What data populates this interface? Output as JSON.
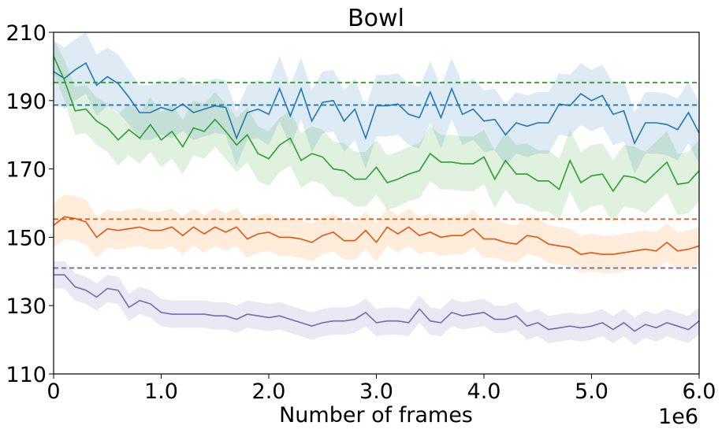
{
  "chart_data": {
    "type": "line",
    "title": "Bowl",
    "xlabel": "Number of frames",
    "ylabel": "",
    "x_offset_label": "1e6",
    "xlim": [
      0,
      6.0
    ],
    "ylim": [
      110,
      210
    ],
    "x_ticks": [
      0,
      1.0,
      2.0,
      3.0,
      4.0,
      5.0,
      6.0
    ],
    "x_tick_labels": [
      "0",
      "1.0",
      "2.0",
      "3.0",
      "4.0",
      "5.0",
      "6.0"
    ],
    "y_ticks": [
      110,
      130,
      150,
      170,
      190,
      210
    ],
    "y_tick_labels": [
      "110",
      "130",
      "150",
      "170",
      "190",
      "210"
    ],
    "grid": false,
    "x_step": 0.1,
    "series": [
      {
        "color": "#1f77b4",
        "band_color": "#1f77b4",
        "values": [
          198.5,
          196.5,
          199,
          201,
          194.5,
          197,
          195,
          191,
          186.5,
          186.5,
          188,
          187,
          189,
          186.5,
          187.5,
          188.5,
          188,
          179,
          186.5,
          187.5,
          186,
          193.5,
          185.5,
          193.5,
          184,
          189.5,
          190,
          184,
          187.5,
          179,
          188.5,
          188.5,
          189,
          186,
          185,
          192.5,
          185,
          193.5,
          186,
          187.5,
          184,
          184.5,
          180,
          183.5,
          182.5,
          183.5,
          183.5,
          189,
          188.5,
          192,
          190,
          191.5,
          186,
          187,
          177.5,
          183.5,
          183.5,
          183,
          181.5,
          186.5,
          180.5
        ],
        "spread": [
          9,
          9,
          9,
          9,
          9,
          8.5,
          8.5,
          8,
          8,
          8,
          8,
          8,
          8,
          8,
          8,
          8,
          8,
          8,
          8,
          8.5,
          9,
          9.5,
          9,
          9,
          9,
          9,
          9,
          9,
          9,
          9,
          9,
          9,
          9,
          9,
          9,
          9,
          9,
          9,
          9,
          9,
          9,
          9,
          9,
          9,
          9,
          9,
          9,
          9,
          9,
          9,
          9,
          9,
          9,
          9,
          9,
          9,
          9,
          9,
          9,
          9,
          9
        ],
        "baseline": 188.7
      },
      {
        "color": "#2ca02c",
        "band_color": "#2ca02c",
        "values": [
          203,
          196,
          187,
          187.5,
          184,
          182,
          178.5,
          181.5,
          179,
          183,
          178.5,
          181,
          176.5,
          182,
          181,
          184.5,
          181,
          177,
          180,
          174.5,
          173,
          177,
          179,
          172.5,
          174.5,
          173.5,
          170,
          169.5,
          167,
          167,
          170.5,
          166,
          167,
          168.5,
          169.5,
          174.5,
          172,
          172,
          171.5,
          171.5,
          173.5,
          167,
          172.5,
          168.5,
          168.5,
          166.5,
          166.5,
          164,
          172.5,
          166,
          168,
          168.5,
          163.5,
          168,
          167.5,
          166,
          169,
          172,
          165.5,
          166,
          169.5
        ],
        "spread": [
          5,
          6,
          7,
          7,
          7,
          7,
          7.5,
          7.5,
          7.5,
          8,
          8,
          8,
          8,
          8,
          8,
          8,
          8,
          8,
          8,
          8,
          8,
          8,
          8,
          8,
          8,
          8,
          8,
          8,
          8,
          8,
          8,
          8,
          8,
          8,
          8,
          8,
          8,
          8,
          8,
          8,
          8,
          8.5,
          8.5,
          8.5,
          9,
          9,
          9,
          9,
          9,
          9,
          9,
          9,
          9,
          9,
          9,
          9,
          9,
          9,
          9,
          9,
          9
        ],
        "baseline": 195.3
      },
      {
        "color": "#e6550d",
        "band_color": "#ff7f0e",
        "values": [
          153.5,
          156,
          155.5,
          154.5,
          150,
          152.5,
          152,
          152.5,
          153,
          152,
          152,
          153,
          150.5,
          153,
          151,
          153,
          151.5,
          153,
          149.5,
          151,
          151.5,
          150,
          150,
          149.5,
          148.5,
          150.5,
          151.5,
          149,
          149,
          152,
          148.5,
          153,
          151,
          153,
          150.5,
          151.5,
          150,
          150.5,
          150.5,
          152.5,
          149.5,
          149.5,
          148.5,
          148,
          150.5,
          150,
          148,
          147.5,
          147,
          145,
          145.5,
          145,
          145,
          145.5,
          146,
          146.5,
          146,
          148.5,
          146,
          146.5,
          147.5
        ],
        "spread": [
          6.5,
          6.5,
          6.5,
          6.5,
          6,
          5.5,
          5.5,
          5.5,
          5.5,
          5.5,
          5.5,
          5.5,
          5.5,
          5.5,
          5.5,
          5.5,
          5.5,
          5.5,
          5.5,
          5.5,
          5.5,
          5.5,
          5.5,
          5.5,
          5.5,
          5.5,
          5.5,
          5.5,
          5.5,
          5.5,
          5.5,
          5.5,
          5.5,
          5.5,
          5.5,
          5.5,
          5.5,
          5.5,
          5.5,
          5.5,
          5.5,
          5.5,
          5.5,
          5.5,
          5.5,
          5.5,
          5.5,
          5.5,
          5.5,
          5.5,
          5.5,
          5.5,
          5.5,
          5.5,
          5.5,
          5.5,
          5.5,
          5.5,
          5.5,
          5.5,
          5.5
        ],
        "baseline": 155.3
      },
      {
        "color": "#756bb1",
        "band_color": "#756bb1",
        "values": [
          139,
          139,
          135.5,
          134.5,
          132.5,
          135,
          134.5,
          129.5,
          131.5,
          130.5,
          128,
          127.5,
          127.5,
          127.5,
          127.5,
          127,
          127,
          126,
          127.5,
          127,
          126.5,
          127,
          126,
          125,
          124,
          125,
          125.5,
          125.5,
          126,
          128,
          125,
          125.5,
          125.5,
          125,
          129,
          125.5,
          125,
          128,
          127,
          127.5,
          128,
          126,
          126,
          127,
          124,
          125,
          123,
          123.5,
          124,
          123.5,
          124,
          125,
          123,
          125,
          122.5,
          124.5,
          123.5,
          125,
          124,
          123,
          125.5
        ],
        "spread": [
          4,
          4,
          4,
          4,
          4,
          4,
          4,
          4,
          4,
          4,
          4,
          4,
          4,
          4,
          4,
          4,
          4,
          4,
          4,
          4,
          4,
          4,
          4,
          4,
          4,
          4,
          4,
          4,
          4,
          4,
          4,
          4,
          4,
          4,
          4,
          4,
          4,
          4,
          4,
          4,
          4,
          4,
          4,
          4,
          4,
          4,
          4,
          4,
          4,
          4,
          4,
          4,
          4,
          4,
          4,
          4,
          4,
          4,
          4,
          4,
          4
        ],
        "baseline": 141
      }
    ]
  }
}
